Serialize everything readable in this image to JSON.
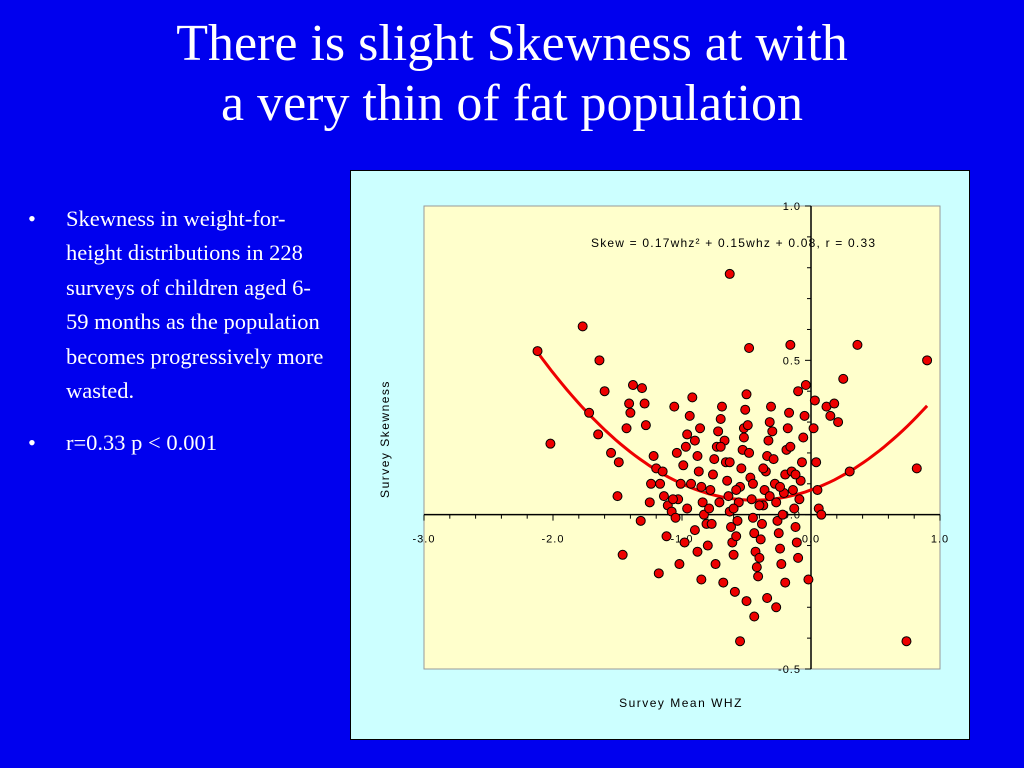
{
  "slide": {
    "title_line1": "There is slight Skewness at with",
    "title_line2": "a very thin of fat population",
    "bullets": [
      "Skewness in weight-for-height distributions in 228 surveys of children aged 6-59 months as the population becomes progressively more wasted.",
      "r=0.33 p < 0.001"
    ],
    "bullet_symbol": "•"
  },
  "chart_data": {
    "type": "scatter",
    "equation": "Skew  = 0.17whz² + 0.15whz + 0.08,  r = 0.33",
    "xlabel": "Survey Mean WHZ",
    "ylabel": "Survey Skewness",
    "xlim": [
      -3.0,
      1.0
    ],
    "ylim": [
      -0.5,
      1.0
    ],
    "x_ticks": [
      "-3.0",
      "-2.0",
      "-1.0",
      "0.0",
      "1.0"
    ],
    "y_ticks": [
      "1.0",
      "0.5",
      "0.0",
      "-0.5"
    ],
    "grid": false,
    "point_color": "#ee0000",
    "curve_color": "#ee0000",
    "plot_bg": "#ffffcc",
    "fit": {
      "a": 0.17,
      "b": 0.15,
      "c": 0.08,
      "x_range": [
        -2.12,
        0.9
      ]
    },
    "points": [
      [
        -2.12,
        0.53
      ],
      [
        -1.77,
        0.61
      ],
      [
        -2.02,
        0.23
      ],
      [
        -1.72,
        0.33
      ],
      [
        -1.64,
        0.5
      ],
      [
        -1.6,
        0.4
      ],
      [
        -1.65,
        0.26
      ],
      [
        -1.55,
        0.2
      ],
      [
        -1.49,
        0.17
      ],
      [
        -1.5,
        0.06
      ],
      [
        -1.43,
        0.28
      ],
      [
        -1.41,
        0.36
      ],
      [
        -1.4,
        0.33
      ],
      [
        -1.38,
        0.42
      ],
      [
        -1.31,
        0.41
      ],
      [
        -1.29,
        0.36
      ],
      [
        -1.28,
        0.29
      ],
      [
        -1.22,
        0.19
      ],
      [
        -1.2,
        0.15
      ],
      [
        -1.17,
        0.1
      ],
      [
        -1.14,
        0.06
      ],
      [
        -1.11,
        0.03
      ],
      [
        -1.08,
        0.01
      ],
      [
        -1.05,
        -0.01
      ],
      [
        -1.03,
        0.05
      ],
      [
        -1.01,
        0.1
      ],
      [
        -0.99,
        0.16
      ],
      [
        -0.97,
        0.22
      ],
      [
        -0.96,
        0.26
      ],
      [
        -0.94,
        0.32
      ],
      [
        -0.92,
        0.38
      ],
      [
        -0.9,
        0.24
      ],
      [
        -0.88,
        0.19
      ],
      [
        -0.87,
        0.14
      ],
      [
        -0.85,
        0.09
      ],
      [
        -0.84,
        0.04
      ],
      [
        -0.83,
        0.0
      ],
      [
        -0.81,
        -0.03
      ],
      [
        -0.79,
        0.02
      ],
      [
        -0.78,
        0.08
      ],
      [
        -0.76,
        0.13
      ],
      [
        -0.75,
        0.18
      ],
      [
        -0.73,
        0.22
      ],
      [
        -0.72,
        0.27
      ],
      [
        -0.7,
        0.31
      ],
      [
        -0.69,
        0.35
      ],
      [
        -0.67,
        0.24
      ],
      [
        -0.66,
        0.17
      ],
      [
        -0.65,
        0.11
      ],
      [
        -0.64,
        0.06
      ],
      [
        -0.63,
        0.01
      ],
      [
        -0.62,
        -0.04
      ],
      [
        -0.61,
        -0.09
      ],
      [
        -0.6,
        -0.13
      ],
      [
        -0.58,
        -0.07
      ],
      [
        -0.57,
        -0.02
      ],
      [
        -0.56,
        0.04
      ],
      [
        -0.55,
        0.09
      ],
      [
        -0.54,
        0.15
      ],
      [
        -0.53,
        0.21
      ],
      [
        -0.52,
        0.28
      ],
      [
        -0.51,
        0.34
      ],
      [
        -0.5,
        0.39
      ],
      [
        -0.49,
        0.29
      ],
      [
        -0.48,
        0.2
      ],
      [
        -0.47,
        0.12
      ],
      [
        -0.46,
        0.05
      ],
      [
        -0.45,
        -0.01
      ],
      [
        -0.44,
        -0.06
      ],
      [
        -0.43,
        -0.12
      ],
      [
        -0.42,
        -0.17
      ],
      [
        -0.41,
        -0.2
      ],
      [
        -0.4,
        -0.14
      ],
      [
        -0.39,
        -0.08
      ],
      [
        -0.38,
        -0.03
      ],
      [
        -0.37,
        0.03
      ],
      [
        -0.36,
        0.08
      ],
      [
        -0.35,
        0.14
      ],
      [
        -0.34,
        0.19
      ],
      [
        -0.33,
        0.24
      ],
      [
        -0.32,
        0.3
      ],
      [
        -0.31,
        0.35
      ],
      [
        -0.3,
        0.27
      ],
      [
        -0.29,
        0.18
      ],
      [
        -0.28,
        0.1
      ],
      [
        -0.27,
        0.04
      ],
      [
        -0.26,
        -0.02
      ],
      [
        -0.25,
        -0.06
      ],
      [
        -0.24,
        -0.11
      ],
      [
        -0.23,
        -0.16
      ],
      [
        -0.22,
        0.0
      ],
      [
        -0.21,
        0.07
      ],
      [
        -0.2,
        0.13
      ],
      [
        -0.19,
        0.21
      ],
      [
        -0.18,
        0.28
      ],
      [
        -0.17,
        0.33
      ],
      [
        -0.16,
        0.22
      ],
      [
        -0.15,
        0.14
      ],
      [
        -0.14,
        0.08
      ],
      [
        -0.13,
        0.02
      ],
      [
        -0.12,
        -0.04
      ],
      [
        -0.11,
        -0.09
      ],
      [
        -0.1,
        -0.14
      ],
      [
        -0.09,
        0.05
      ],
      [
        -0.08,
        0.11
      ],
      [
        -0.07,
        0.17
      ],
      [
        -0.06,
        0.25
      ],
      [
        -0.05,
        0.32
      ],
      [
        -0.04,
        0.42
      ],
      [
        0.03,
        0.37
      ],
      [
        0.02,
        0.28
      ],
      [
        0.04,
        0.17
      ],
      [
        0.05,
        0.08
      ],
      [
        0.06,
        0.02
      ],
      [
        0.08,
        0.0
      ],
      [
        0.12,
        0.35
      ],
      [
        0.15,
        0.32
      ],
      [
        0.18,
        0.36
      ],
      [
        0.21,
        0.3
      ],
      [
        0.25,
        0.44
      ],
      [
        0.3,
        0.14
      ],
      [
        0.36,
        0.55
      ],
      [
        -1.15,
        0.14
      ],
      [
        -1.25,
        0.04
      ],
      [
        -1.32,
        -0.02
      ],
      [
        -1.46,
        -0.13
      ],
      [
        -1.12,
        -0.07
      ],
      [
        -0.98,
        -0.09
      ],
      [
        -0.9,
        -0.05
      ],
      [
        -0.8,
        -0.1
      ],
      [
        -0.74,
        -0.16
      ],
      [
        -0.68,
        -0.22
      ],
      [
        -0.59,
        -0.25
      ],
      [
        -0.5,
        -0.28
      ],
      [
        -0.44,
        -0.33
      ],
      [
        -0.34,
        -0.27
      ],
      [
        -0.2,
        -0.22
      ],
      [
        -0.55,
        -0.41
      ],
      [
        -0.02,
        -0.21
      ],
      [
        -0.27,
        -0.3
      ],
      [
        -0.63,
        0.17
      ],
      [
        -0.7,
        0.22
      ],
      [
        -0.86,
        0.28
      ],
      [
        -1.06,
        0.35
      ],
      [
        -0.52,
        0.25
      ],
      [
        -0.6,
        0.02
      ],
      [
        -0.45,
        0.1
      ],
      [
        -0.37,
        0.15
      ],
      [
        -0.96,
        0.02
      ],
      [
        -1.04,
        0.2
      ],
      [
        -0.77,
        -0.03
      ],
      [
        -0.16,
        0.55
      ],
      [
        -0.48,
        0.54
      ],
      [
        -0.63,
        0.78
      ],
      [
        0.9,
        0.5
      ],
      [
        0.82,
        0.15
      ],
      [
        0.74,
        -0.41
      ],
      [
        -0.1,
        0.4
      ],
      [
        -1.02,
        -0.16
      ],
      [
        -1.18,
        -0.19
      ],
      [
        -0.85,
        -0.21
      ],
      [
        -1.24,
        0.1
      ],
      [
        -0.88,
        -0.12
      ],
      [
        -1.07,
        0.05
      ],
      [
        -0.93,
        0.1
      ],
      [
        -0.71,
        0.04
      ],
      [
        -0.58,
        0.08
      ],
      [
        -0.4,
        0.03
      ],
      [
        -0.32,
        0.06
      ],
      [
        -0.24,
        0.09
      ],
      [
        -0.12,
        0.13
      ]
    ]
  }
}
